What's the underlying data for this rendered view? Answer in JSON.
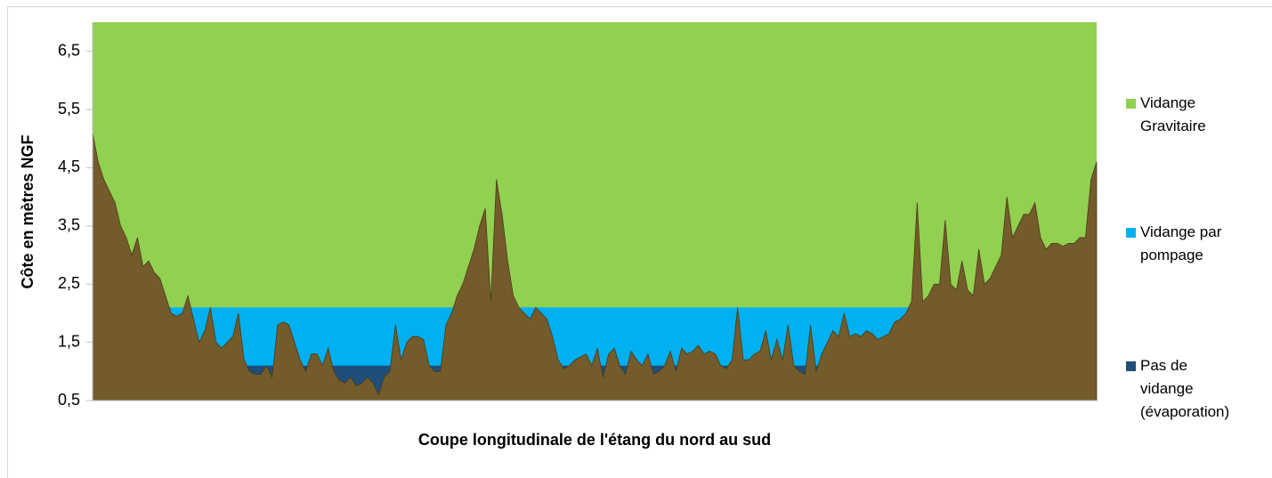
{
  "chart_data": {
    "type": "area",
    "ylabel": "Côte en mètres NGF",
    "xlabel": "Coupe longitudinale de l'étang du nord au sud",
    "ylim": [
      0.5,
      7
    ],
    "yticks": [
      {
        "value": 0.5,
        "label": "0,5"
      },
      {
        "value": 1.5,
        "label": "1,5"
      },
      {
        "value": 2.5,
        "label": "2,5"
      },
      {
        "value": 3.5,
        "label": "3,5"
      },
      {
        "value": 4.5,
        "label": "4,5"
      },
      {
        "value": 5.5,
        "label": "5,5"
      },
      {
        "value": 6.5,
        "label": "6,5"
      }
    ],
    "bands": [
      {
        "name": "Vidange Gravitaire",
        "color": "#92d050",
        "value": 7
      },
      {
        "name": "Vidange par pompage",
        "color": "#00b0f0",
        "value": 2.1
      },
      {
        "name": "Pas de vidange (évaporation)",
        "color": "#1f4e79",
        "value": 1.1
      }
    ],
    "terrain": {
      "color": "#735b2b",
      "values": [
        5.1,
        4.6,
        4.3,
        4.1,
        3.9,
        3.5,
        3.3,
        3.0,
        3.3,
        2.8,
        2.9,
        2.7,
        2.6,
        2.3,
        2.0,
        1.95,
        2.0,
        2.3,
        1.9,
        1.5,
        1.7,
        2.1,
        1.5,
        1.4,
        1.5,
        1.6,
        2.0,
        1.2,
        1.0,
        0.95,
        0.95,
        1.1,
        0.9,
        1.8,
        1.85,
        1.8,
        1.5,
        1.2,
        1.0,
        1.3,
        1.3,
        1.1,
        1.4,
        1.0,
        0.85,
        0.8,
        0.9,
        0.75,
        0.8,
        0.9,
        0.8,
        0.6,
        0.9,
        1.0,
        1.8,
        1.2,
        1.5,
        1.6,
        1.6,
        1.55,
        1.1,
        1.0,
        1.0,
        1.8,
        2.0,
        2.3,
        2.5,
        2.8,
        3.1,
        3.5,
        3.8,
        2.2,
        4.3,
        3.7,
        2.9,
        2.3,
        2.1,
        2.0,
        1.9,
        2.1,
        2.0,
        1.9,
        1.6,
        1.2,
        1.05,
        1.1,
        1.2,
        1.25,
        1.3,
        1.1,
        1.4,
        0.9,
        1.3,
        1.4,
        1.1,
        0.95,
        1.35,
        1.2,
        1.1,
        1.3,
        0.95,
        1.0,
        1.1,
        1.35,
        1.0,
        1.4,
        1.3,
        1.35,
        1.45,
        1.3,
        1.35,
        1.3,
        1.1,
        1.05,
        1.2,
        2.1,
        1.2,
        1.2,
        1.3,
        1.35,
        1.7,
        1.2,
        1.55,
        1.2,
        1.8,
        1.1,
        1.0,
        0.95,
        1.8,
        1.0,
        1.3,
        1.5,
        1.7,
        1.6,
        2.0,
        1.6,
        1.65,
        1.6,
        1.7,
        1.65,
        1.55,
        1.6,
        1.65,
        1.85,
        1.9,
        2.0,
        2.2,
        3.9,
        2.2,
        2.3,
        2.5,
        2.5,
        3.6,
        2.5,
        2.4,
        2.9,
        2.4,
        2.3,
        3.1,
        2.5,
        2.6,
        2.8,
        3.0,
        4.0,
        3.3,
        3.5,
        3.7,
        3.7,
        3.9,
        3.3,
        3.1,
        3.2,
        3.2,
        3.15,
        3.2,
        3.2,
        3.3,
        3.3,
        4.3,
        4.6
      ]
    }
  }
}
